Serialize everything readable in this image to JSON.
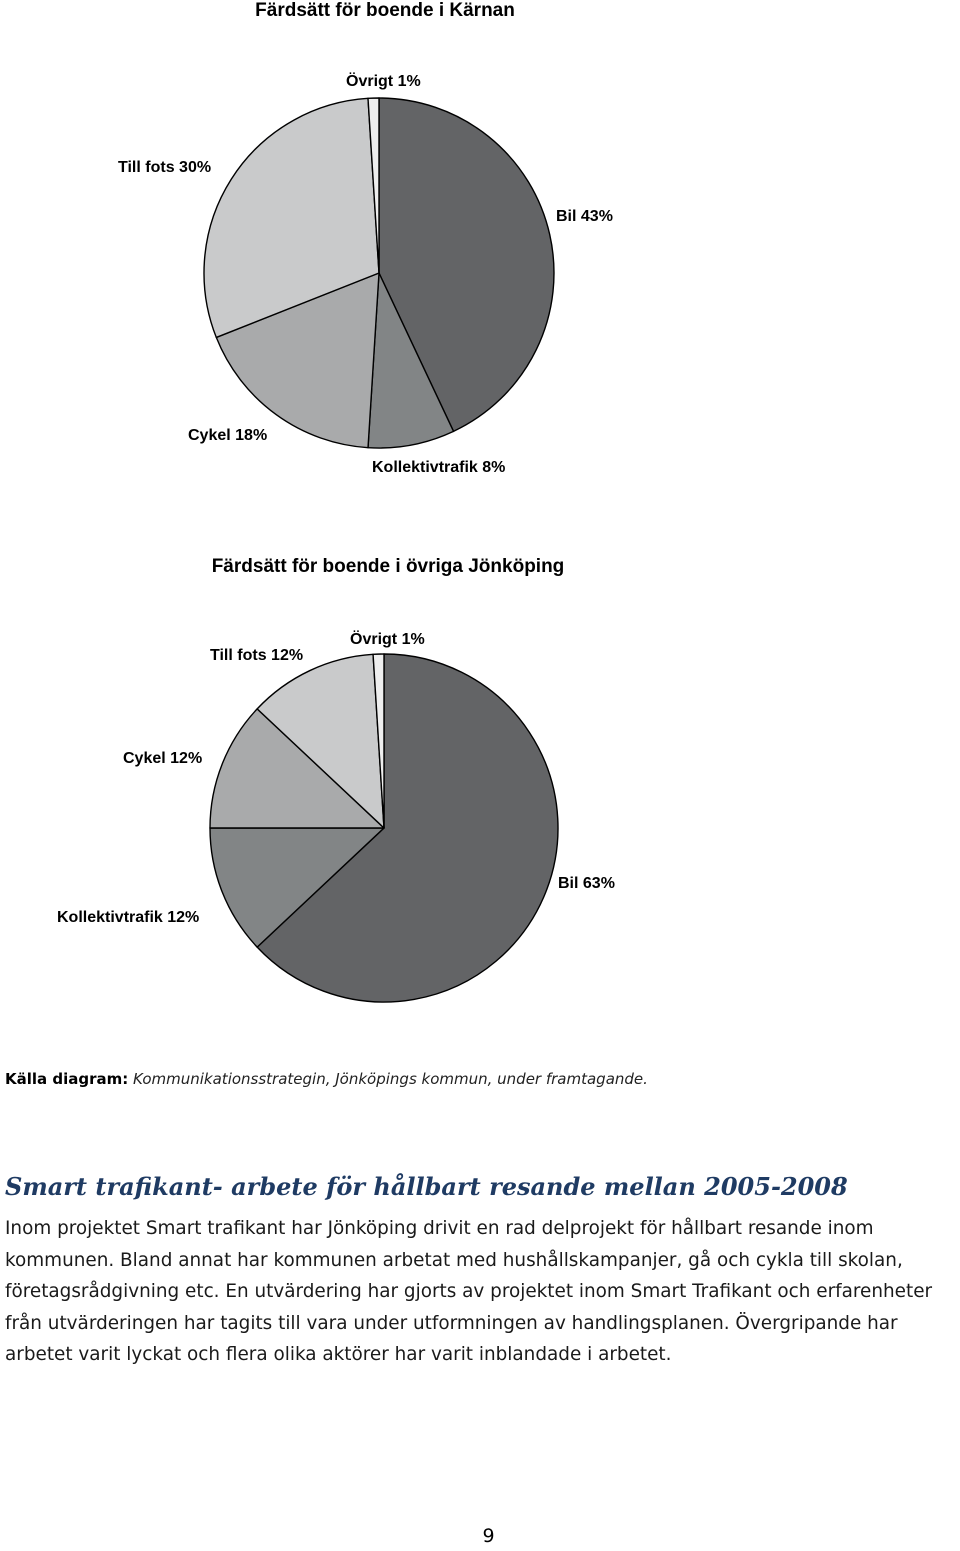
{
  "chart_data": [
    {
      "type": "pie",
      "title": "Färdsätt för boende i Kärnan",
      "categories": [
        "Bil",
        "Kollektivtrafik",
        "Cykel",
        "Till fots",
        "Övrigt"
      ],
      "values": [
        43,
        8,
        18,
        30,
        1
      ],
      "labels": [
        "Bil 43%",
        "Kollektivtrafik 8%",
        "Cykel 18%",
        "Till fots 30%",
        "Övrigt 1%"
      ],
      "colors": [
        "#636466",
        "#828586",
        "#a9aaab",
        "#c9cacb",
        "#eeeeee"
      ]
    },
    {
      "type": "pie",
      "title": "Färdsätt för boende i övriga Jönköping",
      "categories": [
        "Bil",
        "Kollektivtrafik",
        "Cykel",
        "Till fots",
        "Övrigt"
      ],
      "values": [
        63,
        12,
        12,
        12,
        1
      ],
      "labels": [
        "Bil 63%",
        "Kollektivtrafik 12%",
        "Cykel 12%",
        "Till fots 12%",
        "Övrigt 1%"
      ],
      "colors": [
        "#636466",
        "#828586",
        "#a9aaab",
        "#c9cacb",
        "#eeeeee"
      ]
    }
  ],
  "source": {
    "label": "Källa diagram:",
    "text": "Kommunikationsstrategin, Jönköpings kommun, under framtagande."
  },
  "section": {
    "heading": "Smart trafikant- arbete för hållbart resande mellan 2005-2008",
    "body": "Inom projektet Smart trafikant har Jönköping drivit en rad delprojekt för hållbart resande inom kommunen. Bland annat har kommunen arbetat med hushållskampanjer, gå och cykla till skolan, företagsrådgivning etc. En utvärdering har gjorts av projektet inom Smart Trafikant och erfarenheter från utvärderingen har tagits till vara under utformningen av handlingsplanen. Övergripande har arbetet varit lyckat och flera olika aktörer har varit inblandade i arbetet."
  },
  "page_number": "9"
}
